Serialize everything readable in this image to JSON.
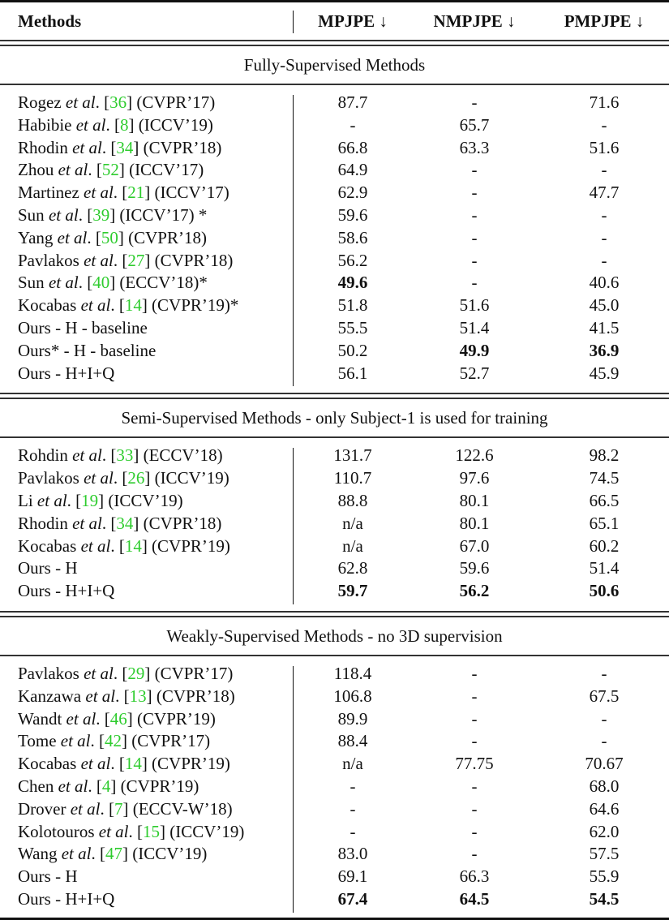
{
  "table": {
    "header": {
      "methods": "Methods",
      "col1": "MPJPE ↓",
      "col2": "NMPJPE ↓",
      "col3": "PMPJPE ↓"
    },
    "sections": [
      {
        "title": "Fully-Supervised Methods",
        "rows": [
          {
            "author": "Rogez ",
            "etal": "et al",
            "dot": ". [",
            "ref": "36",
            "venue": "] (CVPR’17)",
            "mpjpe": "87.7",
            "nmpjpe": "-",
            "pmpjpe": "71.6"
          },
          {
            "author": "Habibie ",
            "etal": "et al",
            "dot": ". [",
            "ref": "8",
            "venue": "] (ICCV’19)",
            "mpjpe": "-",
            "nmpjpe": "65.7",
            "pmpjpe": "-"
          },
          {
            "author": "Rhodin ",
            "etal": "et al",
            "dot": ". [",
            "ref": "34",
            "venue": "] (CVPR’18)",
            "mpjpe": "66.8",
            "nmpjpe": "63.3",
            "pmpjpe": "51.6"
          },
          {
            "author": "Zhou ",
            "etal": "et al",
            "dot": ". [",
            "ref": "52",
            "venue": "] (ICCV’17)",
            "mpjpe": "64.9",
            "nmpjpe": "-",
            "pmpjpe": "-"
          },
          {
            "author": "Martinez ",
            "etal": "et al",
            "dot": ". [",
            "ref": "21",
            "venue": "] (ICCV’17)",
            "mpjpe": "62.9",
            "nmpjpe": "-",
            "pmpjpe": "47.7"
          },
          {
            "author": "Sun ",
            "etal": "et al",
            "dot": ". [",
            "ref": "39",
            "venue": "] (ICCV’17) *",
            "mpjpe": "59.6",
            "nmpjpe": "-",
            "pmpjpe": "-"
          },
          {
            "author": "Yang ",
            "etal": "et al",
            "dot": ". [",
            "ref": "50",
            "venue": "] (CVPR’18)",
            "mpjpe": "58.6",
            "nmpjpe": "-",
            "pmpjpe": "-"
          },
          {
            "author": "Pavlakos ",
            "etal": "et al",
            "dot": ". [",
            "ref": "27",
            "venue": "] (CVPR’18)",
            "mpjpe": "56.2",
            "nmpjpe": "-",
            "pmpjpe": "-"
          },
          {
            "author": "Sun ",
            "etal": "et al",
            "dot": ". [",
            "ref": "40",
            "venue": "] (ECCV’18)*",
            "mpjpe": "49.6",
            "nmpjpe": "-",
            "pmpjpe": "40.6",
            "bold": [
              true,
              false,
              false
            ]
          },
          {
            "author": "Kocabas ",
            "etal": "et al",
            "dot": ". [",
            "ref": "14",
            "venue": "] (CVPR’19)*",
            "mpjpe": "51.8",
            "nmpjpe": "51.6",
            "pmpjpe": "45.0"
          },
          {
            "author": "Ours - H - baseline",
            "mpjpe": "55.5",
            "nmpjpe": "51.4",
            "pmpjpe": "41.5"
          },
          {
            "author": "Ours* - H - baseline",
            "mpjpe": "50.2",
            "nmpjpe": "49.9",
            "pmpjpe": "36.9",
            "bold": [
              false,
              true,
              true
            ]
          },
          {
            "author": "Ours - H+I+Q",
            "mpjpe": "56.1",
            "nmpjpe": "52.7",
            "pmpjpe": "45.9"
          }
        ]
      },
      {
        "title": "Semi-Supervised Methods - only Subject-1 is used for training",
        "rows": [
          {
            "author": "Rohdin ",
            "etal": "et al",
            "dot": ". [",
            "ref": "33",
            "venue": "] (ECCV’18)",
            "mpjpe": "131.7",
            "nmpjpe": "122.6",
            "pmpjpe": "98.2"
          },
          {
            "author": "Pavlakos ",
            "etal": "et al",
            "dot": ". [",
            "ref": "26",
            "venue": "] (ICCV’19)",
            "mpjpe": "110.7",
            "nmpjpe": "97.6",
            "pmpjpe": "74.5"
          },
          {
            "author": "Li ",
            "etal": "et al",
            "dot": ". [",
            "ref": "19",
            "venue": "] (ICCV’19)",
            "mpjpe": "88.8",
            "nmpjpe": "80.1",
            "pmpjpe": "66.5"
          },
          {
            "author": "Rhodin ",
            "etal": "et al",
            "dot": ". [",
            "ref": "34",
            "venue": "] (CVPR’18)",
            "mpjpe": "n/a",
            "nmpjpe": "80.1",
            "pmpjpe": "65.1"
          },
          {
            "author": "Kocabas ",
            "etal": "et al",
            "dot": ". [",
            "ref": "14",
            "venue": "] (CVPR’19)",
            "mpjpe": "n/a",
            "nmpjpe": "67.0",
            "pmpjpe": "60.2"
          },
          {
            "author": "Ours - H",
            "mpjpe": "62.8",
            "nmpjpe": "59.6",
            "pmpjpe": "51.4"
          },
          {
            "author": "Ours - H+I+Q",
            "mpjpe": "59.7",
            "nmpjpe": "56.2",
            "pmpjpe": "50.6",
            "bold": [
              true,
              true,
              true
            ]
          }
        ]
      },
      {
        "title": "Weakly-Supervised Methods - no 3D supervision",
        "rows": [
          {
            "author": "Pavlakos ",
            "etal": "et al",
            "dot": ". [",
            "ref": "29",
            "venue": "] (CVPR’17)",
            "mpjpe": "118.4",
            "nmpjpe": "-",
            "pmpjpe": "-"
          },
          {
            "author": "Kanzawa ",
            "etal": "et al",
            "dot": ". [",
            "ref": "13",
            "venue": "] (CVPR’18)",
            "mpjpe": "106.8",
            "nmpjpe": "-",
            "pmpjpe": "67.5"
          },
          {
            "author": "Wandt ",
            "etal": "et al",
            "dot": ". [",
            "ref": "46",
            "venue": "] (CVPR’19)",
            "mpjpe": "89.9",
            "nmpjpe": "-",
            "pmpjpe": "-"
          },
          {
            "author": "Tome ",
            "etal": "et al",
            "dot": ". [",
            "ref": "42",
            "venue": "] (CVPR’17)",
            "mpjpe": "88.4",
            "nmpjpe": "-",
            "pmpjpe": "-"
          },
          {
            "author": "Kocabas ",
            "etal": "et al",
            "dot": ". [",
            "ref": "14",
            "venue": "] (CVPR’19)",
            "mpjpe": "n/a",
            "nmpjpe": "77.75",
            "pmpjpe": "70.67"
          },
          {
            "author": "Chen ",
            "etal": "et al",
            "dot": ". [",
            "ref": "4",
            "venue": "] (CVPR’19)",
            "mpjpe": "-",
            "nmpjpe": "-",
            "pmpjpe": "68.0"
          },
          {
            "author": "Drover ",
            "etal": "et al",
            "dot": ". [",
            "ref": "7",
            "venue": "] (ECCV-W’18)",
            "mpjpe": "-",
            "nmpjpe": "-",
            "pmpjpe": "64.6"
          },
          {
            "author": "Kolotouros ",
            "etal": "et al",
            "dot": ". [",
            "ref": "15",
            "venue": "] (ICCV’19)",
            "mpjpe": "-",
            "nmpjpe": "-",
            "pmpjpe": "62.0"
          },
          {
            "author": "Wang ",
            "etal": "et al",
            "dot": ". [",
            "ref": "47",
            "venue": "] (ICCV’19)",
            "mpjpe": "83.0",
            "nmpjpe": "-",
            "pmpjpe": "57.5"
          },
          {
            "author": "Ours - H",
            "mpjpe": "69.1",
            "nmpjpe": "66.3",
            "pmpjpe": "55.9"
          },
          {
            "author": "Ours - H+I+Q",
            "mpjpe": "67.4",
            "nmpjpe": "64.5",
            "pmpjpe": "54.5",
            "bold": [
              true,
              true,
              true
            ]
          }
        ]
      }
    ]
  },
  "colors": {
    "ref_link": "#2ecc2e",
    "text": "#111111"
  }
}
